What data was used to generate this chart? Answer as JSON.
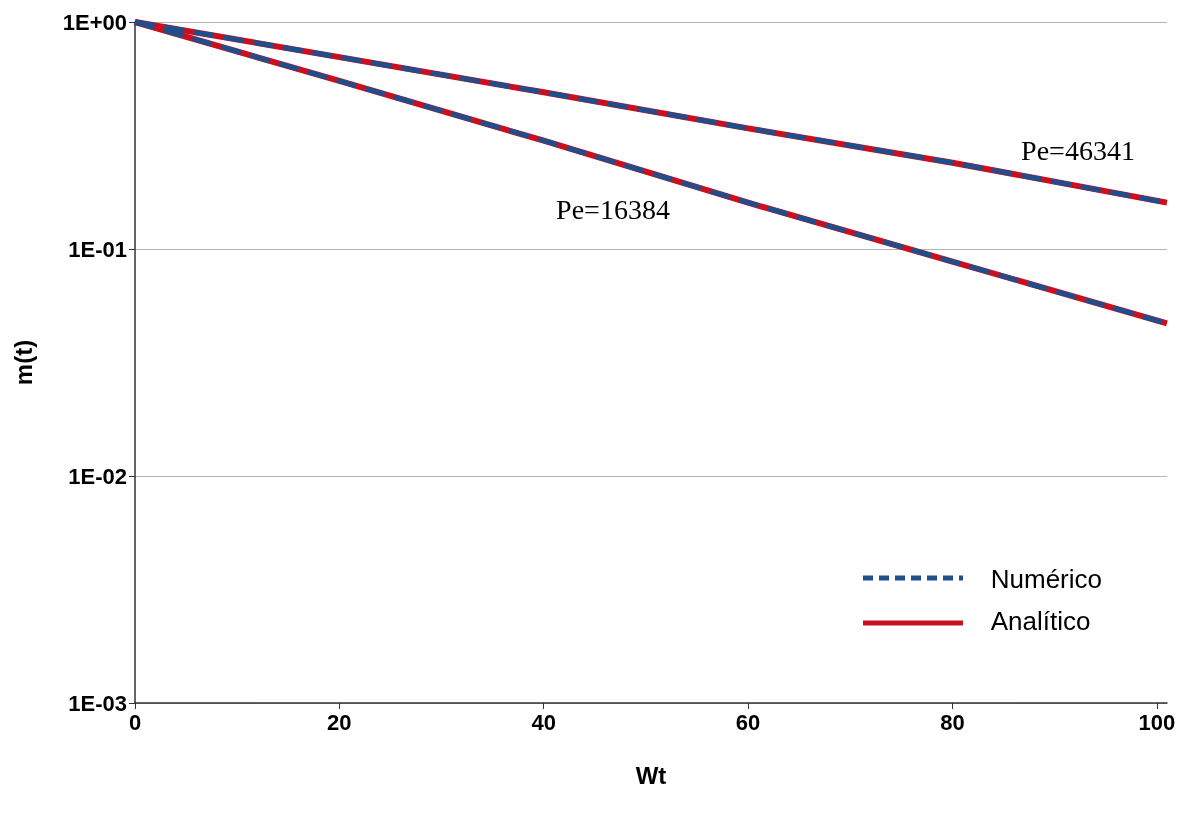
{
  "chart_data": {
    "type": "line",
    "xlabel": "Wt",
    "ylabel": "m(t)",
    "x": [
      0,
      20,
      40,
      60,
      80,
      101
    ],
    "series": [
      {
        "name": "Numérico",
        "color": "#1f4e8c",
        "line_style": "dashed",
        "values": [
          1,
          0.7,
          0.49,
          0.34,
          0.24,
          0.16
        ]
      },
      {
        "color": "#1f4e8c",
        "line_style": "dashed",
        "values": [
          1,
          0.55,
          0.3,
          0.16,
          0.088,
          0.047
        ]
      },
      {
        "name": "Analítico",
        "color": "#c9101e",
        "line_style": "solid",
        "values": [
          1,
          0.7,
          0.49,
          0.34,
          0.24,
          0.16
        ]
      },
      {
        "color": "#c9101e",
        "line_style": "solid",
        "values": [
          1,
          0.55,
          0.3,
          0.16,
          0.088,
          0.047
        ]
      }
    ],
    "log": "y",
    "xlim": [
      0,
      101
    ],
    "xticks": [
      0,
      20,
      40,
      60,
      80,
      100
    ],
    "ylim": [
      0.001,
      1
    ],
    "yticks": [
      {
        "value": 0.001,
        "label": "1E-03"
      },
      {
        "value": 0.01,
        "label": "1E-02"
      },
      {
        "value": 0.1,
        "label": "1E-01"
      },
      {
        "value": 1,
        "label": "1E+00"
      }
    ],
    "grid": "y",
    "legend": "bottom right",
    "marker": "none",
    "annotations": [
      "Pe=46341",
      "Pe=16384"
    ]
  }
}
